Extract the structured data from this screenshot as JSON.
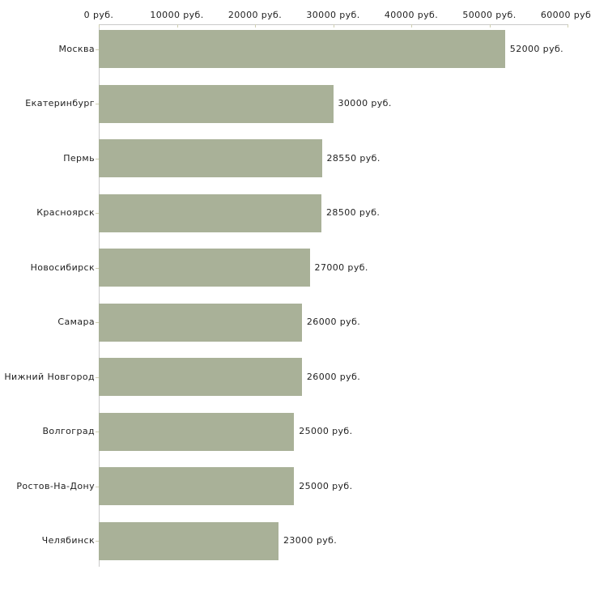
{
  "chart_data": {
    "type": "bar",
    "orientation": "horizontal",
    "title": "",
    "categories": [
      "Москва",
      "Екатеринбург",
      "Пермь",
      "Красноярск",
      "Новосибирск",
      "Самара",
      "Нижний Новгород",
      "Волгоград",
      "Ростов-На-Дону",
      "Челябинск"
    ],
    "values": [
      52000,
      30000,
      28550,
      28500,
      27000,
      26000,
      26000,
      25000,
      25000,
      23000
    ],
    "value_labels": [
      "52000 руб.",
      "30000 руб.",
      "28550 руб.",
      "28500 руб.",
      "27000 руб.",
      "26000 руб.",
      "26000 руб.",
      "25000 руб.",
      "25000 руб.",
      "23000 руб."
    ],
    "x_axis": {
      "position": "top",
      "min": 0,
      "max": 60000,
      "ticks": [
        0,
        10000,
        20000,
        30000,
        40000,
        50000,
        60000
      ],
      "tick_labels": [
        "0 руб.",
        "10000 руб.",
        "20000 руб.",
        "30000 руб.",
        "40000 руб.",
        "50000 руб.",
        "60000 руб."
      ],
      "unit": "руб."
    },
    "grid": false,
    "legend": false,
    "colors": {
      "bar": "#a9b198",
      "axis_line": "#c9c9c9",
      "axis_tick": "#cfcfb2",
      "text": "#1f1f1f",
      "background": "#ffffff"
    }
  }
}
